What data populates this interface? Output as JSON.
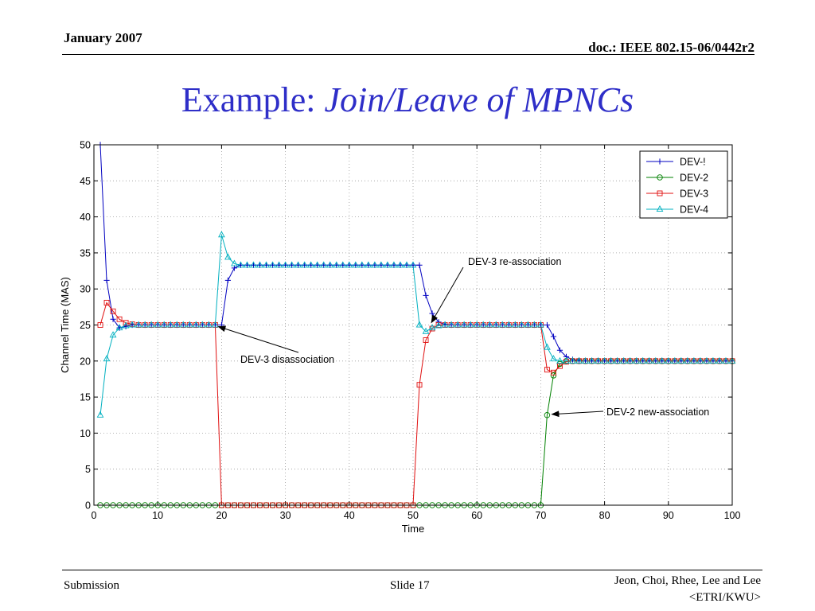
{
  "header": {
    "date": "January 2007",
    "doc": "doc.: IEEE 802.15-06/0442r2"
  },
  "title": {
    "prefix": "Example: ",
    "emphasis": "Join/Leave of MPNCs"
  },
  "footer": {
    "left": "Submission",
    "center": "Slide 17",
    "right_line1": "Jeon, Choi, Rhee, Lee and Lee",
    "right_line2": "<ETRI/KWU>"
  },
  "chart_data": {
    "type": "line",
    "xlabel": "Time",
    "ylabel": "Channel Time (MAS)",
    "xlim": [
      0,
      100
    ],
    "ylim": [
      0,
      50
    ],
    "xticks": [
      0,
      10,
      20,
      30,
      40,
      50,
      60,
      70,
      80,
      90,
      100
    ],
    "yticks": [
      0,
      5,
      10,
      15,
      20,
      25,
      30,
      35,
      40,
      45,
      50
    ],
    "grid": true,
    "legend_position": "top-right",
    "series": [
      {
        "name": "DEV-!",
        "color": "#0000c0",
        "marker": "plus",
        "x": [
          1,
          2,
          3,
          4,
          5,
          6,
          7,
          8,
          9,
          10,
          11,
          12,
          13,
          14,
          15,
          16,
          17,
          18,
          19,
          20,
          21,
          22,
          23,
          24,
          25,
          26,
          27,
          28,
          29,
          30,
          31,
          32,
          33,
          34,
          35,
          36,
          37,
          38,
          39,
          40,
          41,
          42,
          43,
          44,
          45,
          46,
          47,
          48,
          49,
          50,
          51,
          52,
          53,
          54,
          55,
          56,
          57,
          58,
          59,
          60,
          61,
          62,
          63,
          64,
          65,
          66,
          67,
          68,
          69,
          70,
          71,
          72,
          73,
          74,
          75,
          76,
          77,
          78,
          79,
          80,
          81,
          82,
          83,
          84,
          85,
          86,
          87,
          88,
          89,
          90,
          91,
          92,
          93,
          94,
          95,
          96,
          97,
          98,
          99,
          100
        ],
        "y": [
          50,
          31.2,
          25.8,
          24.6,
          24.8,
          25,
          25,
          25,
          25,
          25,
          25,
          25,
          25,
          25,
          25,
          25,
          25,
          25,
          25,
          25,
          31.2,
          32.9,
          33.3,
          33.3,
          33.3,
          33.3,
          33.3,
          33.3,
          33.3,
          33.3,
          33.3,
          33.3,
          33.3,
          33.3,
          33.3,
          33.3,
          33.3,
          33.3,
          33.3,
          33.3,
          33.3,
          33.3,
          33.3,
          33.3,
          33.3,
          33.3,
          33.3,
          33.3,
          33.3,
          33.3,
          33.3,
          29.1,
          26.6,
          25.4,
          25.1,
          25,
          25,
          25,
          25,
          25,
          25,
          25,
          25,
          25,
          25,
          25,
          25,
          25,
          25,
          25,
          25,
          23.4,
          21.5,
          20.6,
          20.2,
          20.1,
          20,
          20,
          20,
          20,
          20,
          20,
          20,
          20,
          20,
          20,
          20,
          20,
          20,
          20,
          20,
          20,
          20,
          20,
          20,
          20,
          20,
          20,
          20,
          20
        ]
      },
      {
        "name": "DEV-2",
        "color": "#008000",
        "marker": "circle",
        "x": [
          1,
          2,
          3,
          4,
          5,
          6,
          7,
          8,
          9,
          10,
          11,
          12,
          13,
          14,
          15,
          16,
          17,
          18,
          19,
          20,
          21,
          22,
          23,
          24,
          25,
          26,
          27,
          28,
          29,
          30,
          31,
          32,
          33,
          34,
          35,
          36,
          37,
          38,
          39,
          40,
          41,
          42,
          43,
          44,
          45,
          46,
          47,
          48,
          49,
          50,
          51,
          52,
          53,
          54,
          55,
          56,
          57,
          58,
          59,
          60,
          61,
          62,
          63,
          64,
          65,
          66,
          67,
          68,
          69,
          70,
          71,
          72,
          73,
          74,
          75,
          76,
          77,
          78,
          79,
          80,
          81,
          82,
          83,
          84,
          85,
          86,
          87,
          88,
          89,
          90,
          91,
          92,
          93,
          94,
          95,
          96,
          97,
          98,
          99,
          100
        ],
        "y": [
          0,
          0,
          0,
          0,
          0,
          0,
          0,
          0,
          0,
          0,
          0,
          0,
          0,
          0,
          0,
          0,
          0,
          0,
          0,
          0,
          0,
          0,
          0,
          0,
          0,
          0,
          0,
          0,
          0,
          0,
          0,
          0,
          0,
          0,
          0,
          0,
          0,
          0,
          0,
          0,
          0,
          0,
          0,
          0,
          0,
          0,
          0,
          0,
          0,
          0,
          0,
          0,
          0,
          0,
          0,
          0,
          0,
          0,
          0,
          0,
          0,
          0,
          0,
          0,
          0,
          0,
          0,
          0,
          0,
          0,
          12.5,
          18,
          19.6,
          20,
          20,
          20,
          20,
          20,
          20,
          20,
          20,
          20,
          20,
          20,
          20,
          20,
          20,
          20,
          20,
          20,
          20,
          20,
          20,
          20,
          20,
          20,
          20,
          20,
          20,
          20
        ]
      },
      {
        "name": "DEV-3",
        "color": "#e01010",
        "marker": "square",
        "x": [
          1,
          2,
          3,
          4,
          5,
          6,
          7,
          8,
          9,
          10,
          11,
          12,
          13,
          14,
          15,
          16,
          17,
          18,
          19,
          20,
          21,
          22,
          23,
          24,
          25,
          26,
          27,
          28,
          29,
          30,
          31,
          32,
          33,
          34,
          35,
          36,
          37,
          38,
          39,
          40,
          41,
          42,
          43,
          44,
          45,
          46,
          47,
          48,
          49,
          50,
          51,
          52,
          53,
          54,
          55,
          56,
          57,
          58,
          59,
          60,
          61,
          62,
          63,
          64,
          65,
          66,
          67,
          68,
          69,
          70,
          71,
          72,
          73,
          74,
          75,
          76,
          77,
          78,
          79,
          80,
          81,
          82,
          83,
          84,
          85,
          86,
          87,
          88,
          89,
          90,
          91,
          92,
          93,
          94,
          95,
          96,
          97,
          98,
          99,
          100
        ],
        "y": [
          25,
          28.1,
          26.9,
          25.8,
          25.3,
          25.1,
          25,
          25,
          25,
          25,
          25,
          25,
          25,
          25,
          25,
          25,
          25,
          25,
          25,
          0,
          0,
          0,
          0,
          0,
          0,
          0,
          0,
          0,
          0,
          0,
          0,
          0,
          0,
          0,
          0,
          0,
          0,
          0,
          0,
          0,
          0,
          0,
          0,
          0,
          0,
          0,
          0,
          0,
          0,
          0,
          16.7,
          22.9,
          24.5,
          25,
          25,
          25,
          25,
          25,
          25,
          25,
          25,
          25,
          25,
          25,
          25,
          25,
          25,
          25,
          25,
          25,
          18.8,
          18.4,
          19.3,
          19.9,
          20,
          20,
          20,
          20,
          20,
          20,
          20,
          20,
          20,
          20,
          20,
          20,
          20,
          20,
          20,
          20,
          20,
          20,
          20,
          20,
          20,
          20,
          20,
          20,
          20,
          20
        ]
      },
      {
        "name": "DEV-4",
        "color": "#00b0c0",
        "marker": "triangle",
        "x": [
          1,
          2,
          3,
          4,
          5,
          6,
          7,
          8,
          9,
          10,
          11,
          12,
          13,
          14,
          15,
          16,
          17,
          18,
          19,
          20,
          21,
          22,
          23,
          24,
          25,
          26,
          27,
          28,
          29,
          30,
          31,
          32,
          33,
          34,
          35,
          36,
          37,
          38,
          39,
          40,
          41,
          42,
          43,
          44,
          45,
          46,
          47,
          48,
          49,
          50,
          51,
          52,
          53,
          54,
          55,
          56,
          57,
          58,
          59,
          60,
          61,
          62,
          63,
          64,
          65,
          66,
          67,
          68,
          69,
          70,
          71,
          72,
          73,
          74,
          75,
          76,
          77,
          78,
          79,
          80,
          81,
          82,
          83,
          84,
          85,
          86,
          87,
          88,
          89,
          90,
          91,
          92,
          93,
          94,
          95,
          96,
          97,
          98,
          99,
          100
        ],
        "y": [
          12.5,
          20.3,
          23.6,
          24.6,
          24.9,
          25,
          25,
          25,
          25,
          25,
          25,
          25,
          25,
          25,
          25,
          25,
          25,
          25,
          25,
          37.5,
          34.4,
          33.5,
          33.3,
          33.3,
          33.3,
          33.3,
          33.3,
          33.3,
          33.3,
          33.3,
          33.3,
          33.3,
          33.3,
          33.3,
          33.3,
          33.3,
          33.3,
          33.3,
          33.3,
          33.3,
          33.3,
          33.3,
          33.3,
          33.3,
          33.3,
          33.3,
          33.3,
          33.3,
          33.3,
          33.3,
          25,
          24.1,
          24.6,
          24.9,
          25,
          25,
          25,
          25,
          25,
          25,
          25,
          25,
          25,
          25,
          25,
          25,
          25,
          25,
          25,
          25,
          21.9,
          20.3,
          20,
          20,
          20,
          20,
          20,
          20,
          20,
          20,
          20,
          20,
          20,
          20,
          20,
          20,
          20,
          20,
          20,
          20,
          20,
          20,
          20,
          20,
          20,
          20,
          20,
          20,
          20,
          20
        ]
      }
    ],
    "annotations": [
      {
        "text": "DEV-3 disassociation",
        "x": 19,
        "y": 25
      },
      {
        "text": "DEV-3 re-association",
        "x": 53,
        "y": 25
      },
      {
        "text": "DEV-2 new-association",
        "x": 71,
        "y": 12.5
      }
    ]
  }
}
